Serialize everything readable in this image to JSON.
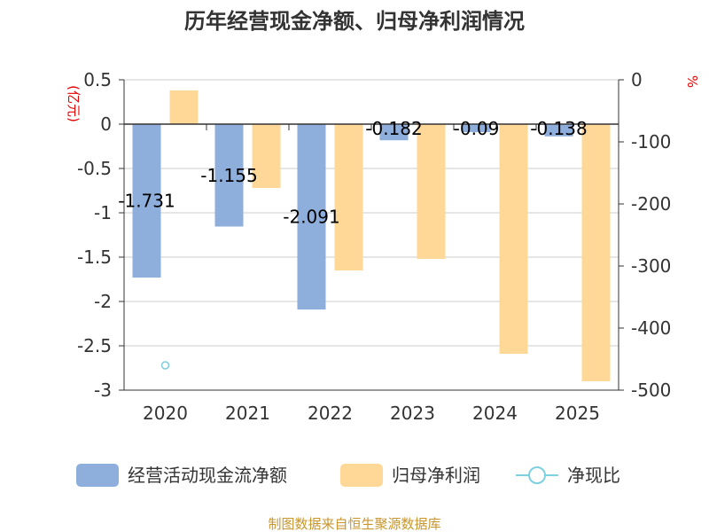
{
  "chart_data": {
    "type": "bar",
    "title": "历年经营现金净额、归母净利润情况",
    "left_unit": "(亿元)",
    "right_unit": "%",
    "categories": [
      "2020",
      "2021",
      "2022",
      "2023",
      "2024",
      "2025"
    ],
    "left_axis": {
      "ylim": [
        -3,
        0.5
      ],
      "ticks": [
        "0.5",
        "0",
        "-0.5",
        "-1",
        "-1.5",
        "-2",
        "-2.5",
        "-3"
      ]
    },
    "right_axis": {
      "ylim": [
        -500,
        0
      ],
      "ticks": [
        "0",
        "-100",
        "-200",
        "-300",
        "-400",
        "-500"
      ]
    },
    "grid": true,
    "legend_position": "bottom",
    "series": [
      {
        "name": "经营活动现金流净额",
        "axis": "left",
        "color": "#8eaedb",
        "values": [
          -1.731,
          -1.155,
          -2.091,
          -0.182,
          -0.09,
          -0.138
        ],
        "labels": [
          "-1.731",
          "-1.155",
          "-2.091",
          "-0.182",
          "-0.09",
          "-0.138"
        ]
      },
      {
        "name": "归母净利润",
        "axis": "left",
        "color": "#ffd897",
        "values": [
          0.38,
          -0.72,
          -1.65,
          -1.52,
          -2.59,
          -2.9
        ]
      },
      {
        "name": "净现比",
        "axis": "right",
        "color": "#7ecfe0",
        "type": "scatter",
        "values": [
          -460,
          null,
          null,
          null,
          null,
          null
        ]
      }
    ]
  },
  "source_text": "制图数据来自恒生聚源数据库"
}
